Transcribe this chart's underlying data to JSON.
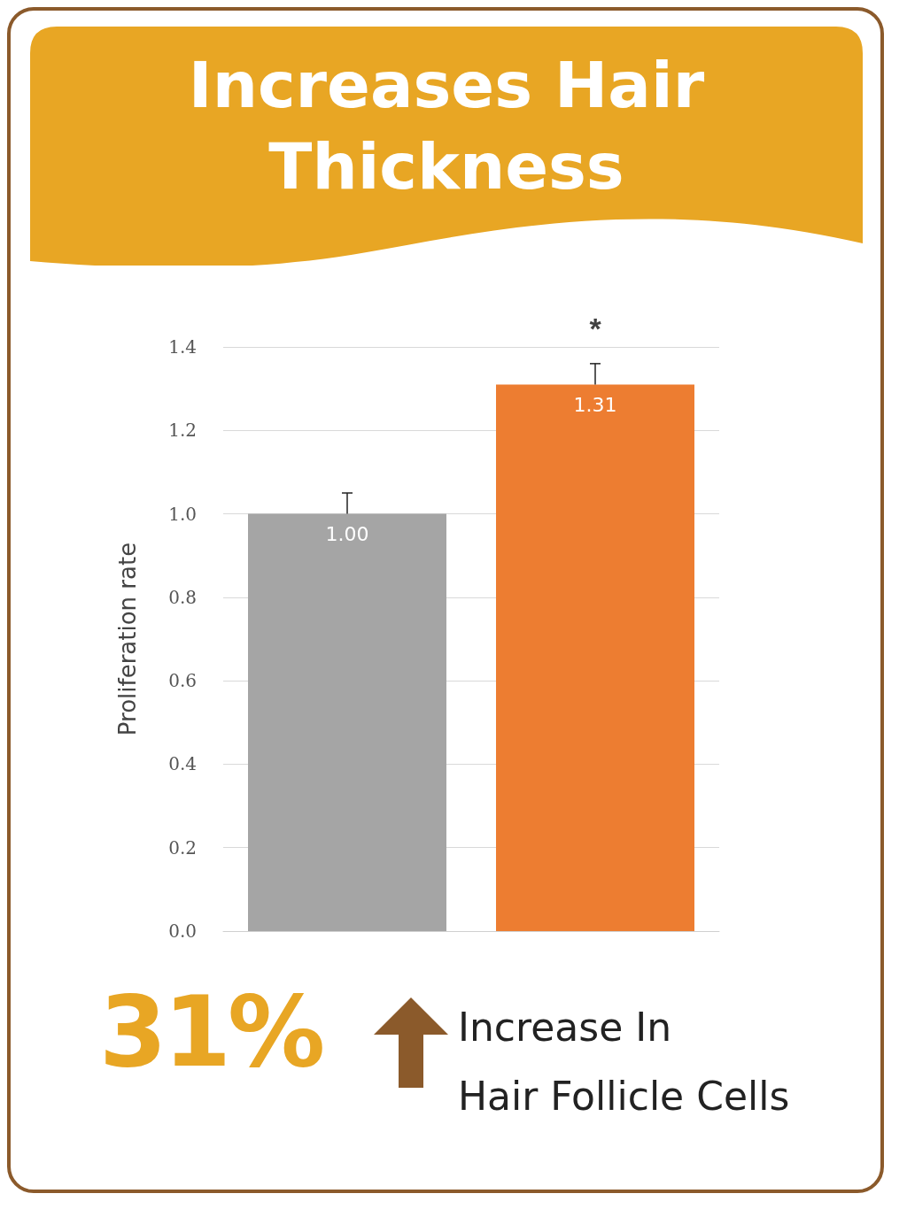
{
  "chart_data": {
    "type": "bar",
    "title": "Increases Hair Thickness",
    "ylabel": "Proliferation rate",
    "categories": [
      null,
      null
    ],
    "values": [
      1.0,
      1.31
    ],
    "colors": [
      "#a5a5a5",
      "#ed7d31"
    ],
    "value_labels": [
      "1.00",
      "1.31"
    ],
    "errors": [
      [
        1.0,
        1.05
      ],
      [
        1.31,
        1.36
      ]
    ],
    "ylim": [
      0,
      1.4
    ],
    "yticks": [
      {
        "value": 0,
        "label": "0.0"
      },
      0.2,
      0.4,
      0.6,
      0.8,
      {
        "value": 1,
        "label": "1.0"
      },
      1.2,
      1.4
    ],
    "grid": "y",
    "annotations": [
      "*",
      "31%",
      "Increase In\nHair Follicle Cells"
    ]
  }
}
